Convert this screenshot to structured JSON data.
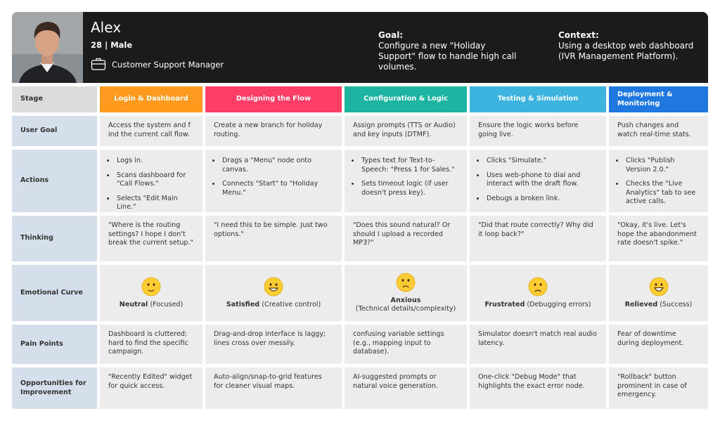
{
  "persona": {
    "name": "Alex",
    "age_gender": "28 | Male",
    "role": "Customer Support Manager"
  },
  "goal": {
    "label": "Goal:",
    "text": "Configure a new \"Holiday Support\" flow to handle high call volumes."
  },
  "context": {
    "label": "Context:",
    "text": "Using a desktop web dashboard (IVR Management Platform)."
  },
  "table": {
    "stage_label": "Stage",
    "stages": [
      {
        "name": "Login & Dashboard",
        "color": "#ff9a1f"
      },
      {
        "name": "Designing the Flow",
        "color": "#fd3f68"
      },
      {
        "name": "Configuration & Logic",
        "color": "#1db5a2"
      },
      {
        "name": "Testing & Simulation",
        "color": "#3db3df"
      },
      {
        "name": "Deployment & Monitoring",
        "color": "#1f78e0"
      }
    ],
    "rows": [
      {
        "label": "User Goal",
        "cells": [
          "Access the system and f ind the current call flow.",
          "Create a new branch for holiday routing.",
          "Assign prompts (TTS or Audio) and key inputs (DTMF).",
          "Ensure the logic works before going live.",
          "Push changes and watch real-time stats."
        ]
      },
      {
        "label": "Actions",
        "cells": [
          [
            "Logs in.",
            "Scans dashboard for \"Call Flows.\"",
            "Selects \"Edit Main Line.\""
          ],
          [
            "Drags a \"Menu\" node onto canvas.",
            "Connects \"Start\" to \"Holiday Menu.\""
          ],
          [
            "Types text for Text-to-Speech: \"Press 1 for Sales.\"",
            "Sets timeout logic (if user doesn't press key)."
          ],
          [
            "Clicks \"Simulate.\"",
            "Uses web-phone to dial and interact with the draft flow.",
            "Debugs a broken link."
          ],
          [
            "Clicks \"Publish Version 2.0.\"",
            "Checks the \"Live Analytics\" tab to see active calls."
          ]
        ]
      },
      {
        "label": "Thinking",
        "cells": [
          "\"Where is the routing settings? I hope I don't break the current setup.\"",
          "\"I need this to be simple. Just two options.\"",
          "\"Does this sound natural? Or should I upload a recorded MP3?\"",
          "\"Did that route correctly? Why did it loop back?\"",
          "\"Okay, it's live. Let's hope the abandonment rate doesn't spike.\""
        ]
      },
      {
        "label": "Emotional Curve",
        "cells": [
          {
            "mood": "Neutral",
            "note": "(Focused)"
          },
          {
            "mood": "Satisfied",
            "note": "(Creative control)"
          },
          {
            "mood": "Anxious",
            "note": "(Technical details/complexity)"
          },
          {
            "mood": "Frustrated",
            "note": "(Debugging errors)"
          },
          {
            "mood": "Relieved",
            "note": "(Success)"
          }
        ]
      },
      {
        "label": "Pain Points",
        "cells": [
          "Dashboard is cluttered; hard to find the specific campaign.",
          "Drag-and-drop interface is laggy; lines cross over messily.",
          "confusing variable settings (e.g., mapping input to database).",
          "Simulator doesn't match real audio latency.",
          "Fear of downtime during deployment."
        ]
      },
      {
        "label": "Opportunities for Improvement",
        "cells": [
          "\"Recently Edited\" widget for quick access.",
          "Auto-align/snap-to-grid features for cleaner visual maps.",
          "AI-suggested prompts or natural voice generation.",
          "One-click \"Debug Mode\" that highlights the exact error node.",
          "\"Rollback\" button prominent in case of emergency."
        ]
      }
    ]
  }
}
